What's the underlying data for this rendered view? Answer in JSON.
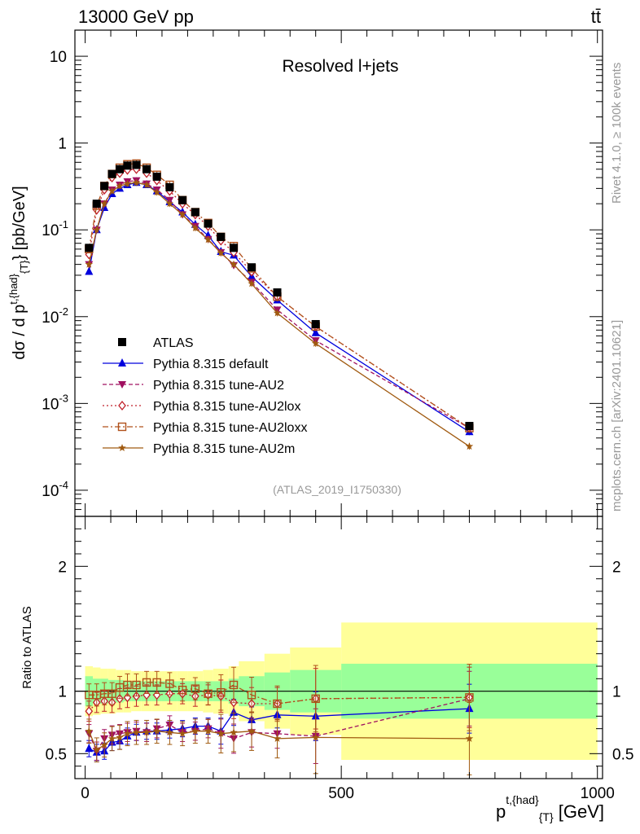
{
  "header": {
    "left": "13000 GeV pp",
    "right": "tt̄"
  },
  "side_labels": {
    "rivet": "Rivet 4.1.0, ≥ 100k events",
    "mcplots": "mcplots.cern.ch [arXiv:2401.10621]"
  },
  "chart_data": {
    "type": "line",
    "title": "Resolved l+jets",
    "analysis_tag": "(ATLAS_2019_I1750330)",
    "xlabel": "p^{t,{had}}_{T} [GeV]",
    "xlabel_parts": {
      "base": "p",
      "sup": "t,{had}",
      "sub": "{T}",
      "unit": " [GeV]"
    },
    "ylabel": "dσ / d p^{t,{had}}_{T} [pb/GeV]",
    "ylabel_parts": {
      "pre": "dσ / d p",
      "sup": "t,{had}",
      "sub": "{T}",
      "unit": "} [pb/GeV]"
    },
    "ratio_ylabel": "Ratio to ATLAS",
    "xlim": [
      -20,
      1010
    ],
    "ylim": [
      5e-05,
      20
    ],
    "yscale": "log",
    "ratio_ylim": [
      0.3,
      2.4
    ],
    "x_ticks": [
      0,
      500,
      1000
    ],
    "y_tick_labels": [
      "10",
      "1",
      "10^-1",
      "10^-2",
      "10^-3",
      "10^-4"
    ],
    "ratio_tick_labels": [
      "0.5",
      "1",
      "2"
    ],
    "x": [
      7.5,
      22.5,
      37.5,
      52.5,
      67.5,
      82.5,
      100,
      120,
      140,
      165,
      190,
      215,
      240,
      265,
      290,
      325,
      375,
      450,
      750
    ],
    "bin_edges": [
      0,
      15,
      30,
      45,
      60,
      75,
      90,
      110,
      130,
      150,
      180,
      200,
      230,
      250,
      280,
      300,
      350,
      400,
      500,
      1000
    ],
    "data": {
      "name": "ATLAS",
      "values": [
        0.062,
        0.2,
        0.32,
        0.44,
        0.5,
        0.55,
        0.56,
        0.5,
        0.41,
        0.31,
        0.22,
        0.16,
        0.118,
        0.083,
        0.062,
        0.037,
        0.019,
        0.0082,
        0.00055
      ],
      "stat_band_rel": [
        0.12,
        0.1,
        0.1,
        0.09,
        0.09,
        0.08,
        0.08,
        0.08,
        0.08,
        0.08,
        0.08,
        0.08,
        0.08,
        0.08,
        0.1,
        0.12,
        0.15,
        0.17,
        0.22
      ],
      "total_band_rel": [
        0.2,
        0.19,
        0.18,
        0.18,
        0.17,
        0.17,
        0.16,
        0.16,
        0.16,
        0.16,
        0.16,
        0.16,
        0.17,
        0.18,
        0.2,
        0.24,
        0.3,
        0.35,
        0.55
      ]
    },
    "series": [
      {
        "name": "Pythia 8.315 default",
        "color": "#0000dd",
        "marker": "triangle-up",
        "dash": "",
        "values": [
          0.033,
          0.1,
          0.18,
          0.26,
          0.3,
          0.33,
          0.35,
          0.33,
          0.28,
          0.21,
          0.16,
          0.115,
          0.086,
          0.056,
          0.051,
          0.029,
          0.0155,
          0.0065,
          0.00047
        ],
        "ratio": [
          0.54,
          0.51,
          0.52,
          0.59,
          0.6,
          0.64,
          0.67,
          0.68,
          0.68,
          0.69,
          0.7,
          0.72,
          0.72,
          0.68,
          0.83,
          0.77,
          0.81,
          0.8,
          0.86
        ]
      },
      {
        "name": "Pythia 8.315 tune-AU2",
        "color": "#a01060",
        "marker": "triangle-down",
        "dash": "5,3",
        "values": [
          0.04,
          0.1,
          0.2,
          0.29,
          0.33,
          0.36,
          0.37,
          0.34,
          0.29,
          0.22,
          0.15,
          0.11,
          0.078,
          0.055,
          0.039,
          0.025,
          0.012,
          0.0053,
          0.00052
        ],
        "ratio": [
          0.66,
          0.52,
          0.62,
          0.65,
          0.66,
          0.67,
          0.68,
          0.67,
          0.7,
          0.73,
          0.67,
          0.68,
          0.7,
          0.66,
          0.62,
          0.67,
          0.66,
          0.64,
          0.94
        ]
      },
      {
        "name": "Pythia 8.315 tune-AU2lox",
        "color": "#c0202a",
        "marker": "diamond",
        "dash": "2,3",
        "values": [
          0.052,
          0.17,
          0.29,
          0.4,
          0.45,
          0.49,
          0.5,
          0.45,
          0.37,
          0.28,
          0.2,
          0.15,
          0.11,
          0.075,
          0.055,
          0.033,
          0.017,
          0.0077,
          0.00052
        ],
        "ratio": [
          0.84,
          0.91,
          0.92,
          0.91,
          0.94,
          0.95,
          0.96,
          0.97,
          0.97,
          0.98,
          0.98,
          0.96,
          0.97,
          0.96,
          0.91,
          0.9,
          0.9,
          0.94,
          0.95
        ]
      },
      {
        "name": "Pythia 8.315 tune-AU2loxx",
        "color": "#b0501a",
        "marker": "square-open",
        "dash": "7,3,2,3",
        "values": [
          0.06,
          0.19,
          0.32,
          0.44,
          0.52,
          0.57,
          0.58,
          0.52,
          0.43,
          0.33,
          0.22,
          0.16,
          0.12,
          0.083,
          0.065,
          0.036,
          0.017,
          0.0077,
          0.00052
        ],
        "ratio": [
          0.97,
          0.97,
          0.98,
          0.98,
          1.03,
          1.05,
          1.05,
          1.07,
          1.07,
          1.06,
          1.01,
          1.02,
          0.98,
          0.99,
          1.05,
          0.97,
          0.9,
          0.94,
          0.95
        ]
      },
      {
        "name": "Pythia 8.315 tune-AU2m",
        "color": "#a05a10",
        "marker": "star",
        "dash": "",
        "values": [
          0.04,
          0.1,
          0.2,
          0.28,
          0.32,
          0.34,
          0.35,
          0.33,
          0.27,
          0.2,
          0.15,
          0.105,
          0.077,
          0.054,
          0.04,
          0.024,
          0.011,
          0.0049,
          0.00032
        ],
        "ratio": [
          0.68,
          0.53,
          0.57,
          0.62,
          0.63,
          0.66,
          0.67,
          0.67,
          0.68,
          0.67,
          0.66,
          0.68,
          0.68,
          0.66,
          0.67,
          0.68,
          0.62,
          0.63,
          0.62
        ]
      }
    ]
  }
}
